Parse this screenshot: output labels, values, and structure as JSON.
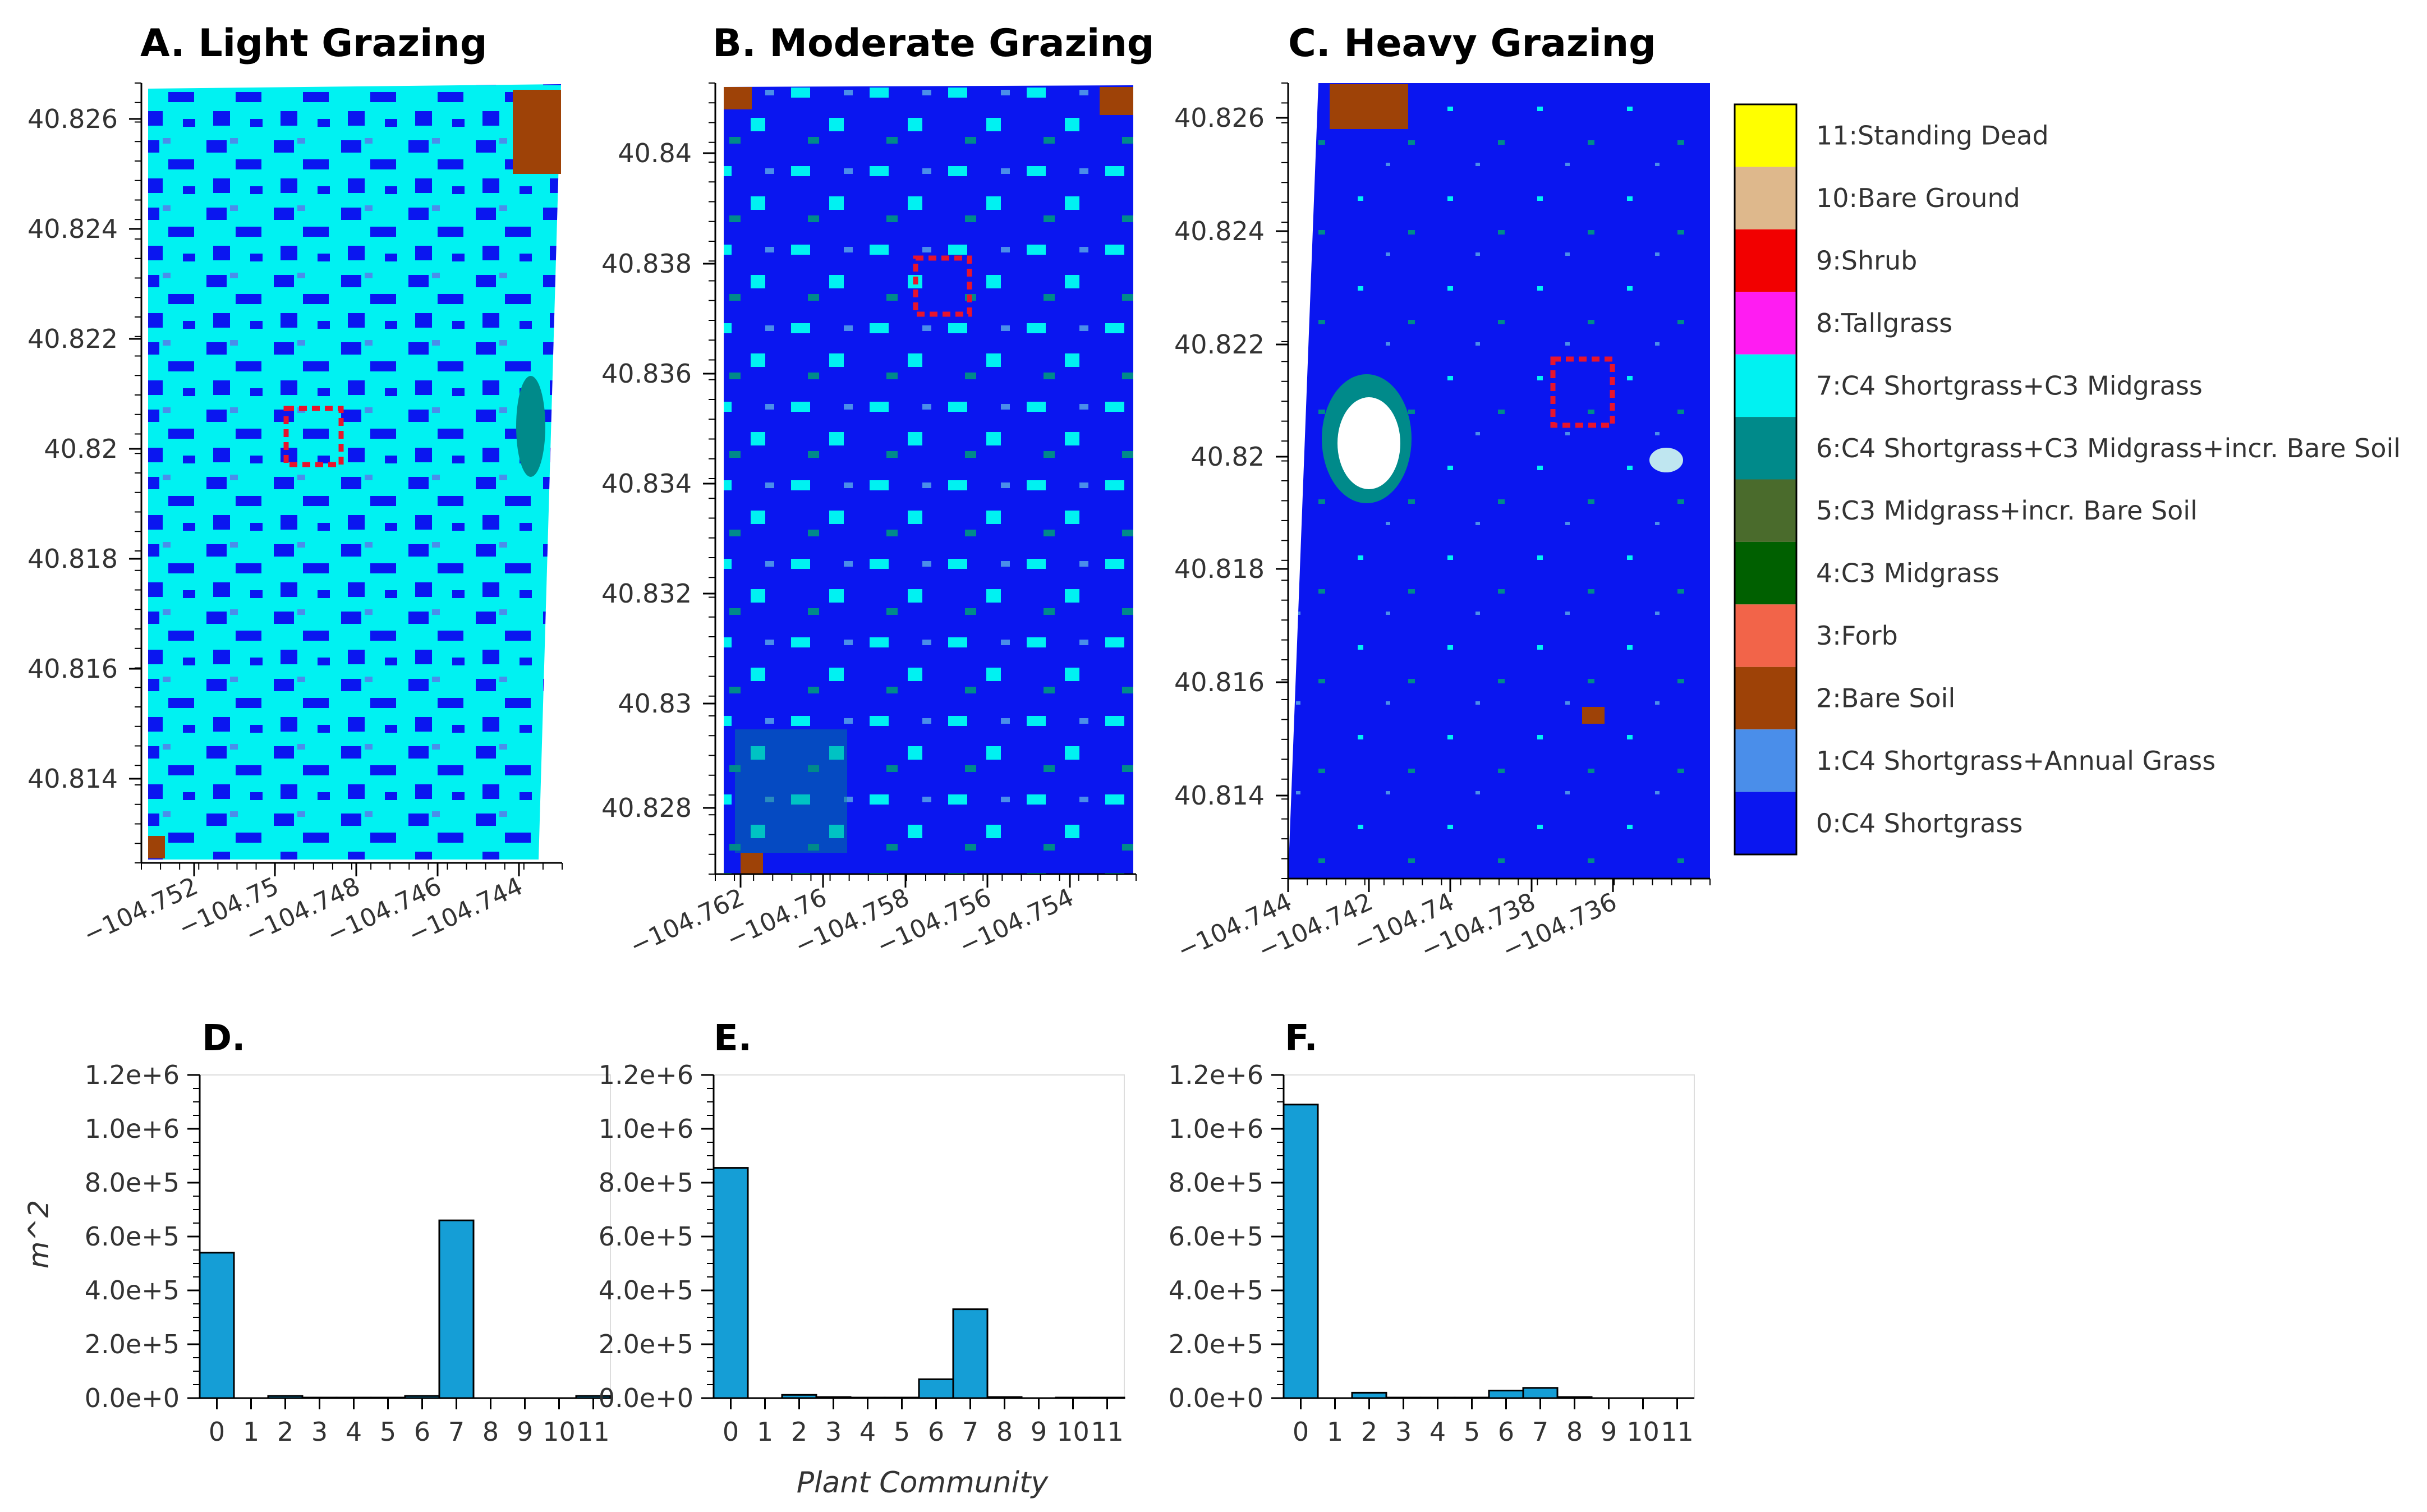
{
  "colors": {
    "classes": [
      "#0a16f0",
      "#4a8eea",
      "#9e4207",
      "#f26449",
      "#006000",
      "#4a6b2c",
      "#008a8a",
      "#00f2f2",
      "#ff1cf2",
      "#f20000",
      "#deb88c",
      "#ffff00"
    ],
    "bar_fill": "#159ed6",
    "box": "#e8142c",
    "highlight": "#bfe6f0"
  },
  "legend": {
    "entries": [
      "11:Standing Dead",
      "10:Bare Ground",
      "9:Shrub",
      "8:Tallgrass",
      "7:C4 Shortgrass+C3 Midgrass",
      "6:C4 Shortgrass+C3 Midgrass+incr. Bare Soil",
      "5:C3 Midgrass+incr. Bare Soil",
      "4:C3 Midgrass",
      "3:Forb",
      "2:Bare Soil",
      "1:C4 Shortgrass+Annual Grass",
      "0:C4 Shortgrass"
    ]
  },
  "chart_data": [
    {
      "type": "heatmap",
      "id": "A",
      "title": "A. Light Grazing",
      "description_class": "mostly 7:C4 Shortgrass+C3 Midgrass mixed with 0:C4 Shortgrass",
      "x_tick_labels": [
        "−104.752",
        "−104.75",
        "−104.748",
        "−104.746",
        "−104.744"
      ],
      "y_tick_labels": [
        "40.826",
        "40.824",
        "40.822",
        "40.82",
        "40.818",
        "40.816",
        "40.814"
      ]
    },
    {
      "type": "heatmap",
      "id": "B",
      "title": "B. Moderate Grazing",
      "description_class": "mostly 0:C4 Shortgrass with patches of 7",
      "x_tick_labels": [
        "−104.762",
        "−104.76",
        "−104.758",
        "−104.756",
        "−104.754"
      ],
      "y_tick_labels": [
        "40.84",
        "40.838",
        "40.836",
        "40.834",
        "40.832",
        "40.83",
        "40.828"
      ]
    },
    {
      "type": "heatmap",
      "id": "C",
      "title": "C. Heavy Grazing",
      "description_class": "mostly 0:C4 Shortgrass",
      "x_tick_labels": [
        "−104.744",
        "−104.742",
        "−104.74",
        "−104.738",
        "−104.736"
      ],
      "y_tick_labels": [
        "40.826",
        "40.824",
        "40.822",
        "40.82",
        "40.818",
        "40.816",
        "40.814"
      ]
    },
    {
      "type": "bar",
      "id": "D",
      "title": "D.",
      "categories": [
        "0",
        "1",
        "2",
        "3",
        "4",
        "5",
        "6",
        "7",
        "8",
        "9",
        "10",
        "11"
      ],
      "values": [
        540000,
        0,
        8000,
        2000,
        2000,
        2000,
        8000,
        660000,
        0,
        0,
        0,
        8000
      ],
      "ylabel": "m^2",
      "xlabel": "",
      "ylim": [
        0,
        1200000
      ],
      "y_tick_labels": [
        "0.0e+0",
        "2.0e+5",
        "4.0e+5",
        "6.0e+5",
        "8.0e+5",
        "1.0e+6",
        "1.2e+6"
      ]
    },
    {
      "type": "bar",
      "id": "E",
      "title": "E.",
      "categories": [
        "0",
        "1",
        "2",
        "3",
        "4",
        "5",
        "6",
        "7",
        "8",
        "9",
        "10",
        "11"
      ],
      "values": [
        855000,
        0,
        12000,
        4000,
        2000,
        2000,
        70000,
        330000,
        4000,
        0,
        2000,
        2000
      ],
      "ylabel": "",
      "xlabel": "Plant Community",
      "ylim": [
        0,
        1200000
      ],
      "y_tick_labels": [
        "0.0e+0",
        "2.0e+5",
        "4.0e+5",
        "6.0e+5",
        "8.0e+5",
        "1.0e+6",
        "1.2e+6"
      ]
    },
    {
      "type": "bar",
      "id": "F",
      "title": "F.",
      "categories": [
        "0",
        "1",
        "2",
        "3",
        "4",
        "5",
        "6",
        "7",
        "8",
        "9",
        "10",
        "11"
      ],
      "values": [
        1090000,
        0,
        20000,
        2000,
        2000,
        2000,
        28000,
        38000,
        4000,
        0,
        0,
        0
      ],
      "ylabel": "",
      "xlabel": "",
      "ylim": [
        0,
        1200000
      ],
      "y_tick_labels": [
        "0.0e+0",
        "2.0e+5",
        "4.0e+5",
        "6.0e+5",
        "8.0e+5",
        "1.0e+6",
        "1.2e+6"
      ]
    }
  ]
}
